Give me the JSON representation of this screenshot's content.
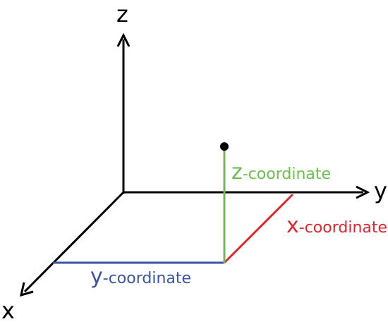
{
  "axes": {
    "z": {
      "label": "z"
    },
    "y": {
      "label": "y"
    },
    "x": {
      "label": "x"
    }
  },
  "coordinates": {
    "z": {
      "letter": "z",
      "suffix": "-coordinate",
      "color": "#6abf4b"
    },
    "x": {
      "letter": "x",
      "suffix": "-coordinate",
      "color": "#e0252b"
    },
    "y": {
      "letter": "y",
      "suffix": "-coordinate",
      "color": "#3a54a4"
    }
  },
  "colors": {
    "axis": "#000000",
    "point": "#000000"
  }
}
